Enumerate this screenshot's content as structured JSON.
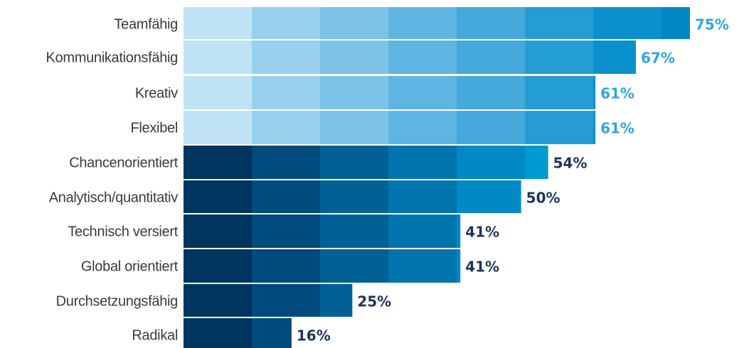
{
  "chart_data": {
    "type": "bar",
    "orientation": "horizontal",
    "title": "",
    "xlabel": "",
    "ylabel": "",
    "xlim": [
      0,
      75
    ],
    "grid": false,
    "categories": [
      "Teamfähig",
      "Kommunikationsfähig",
      "Kreativ",
      "Flexibel",
      "Chancenorientiert",
      "Analytisch/quantitativ",
      "Technisch versiert",
      "Global orientiert",
      "Durchsetzungsfähig",
      "Radikal"
    ],
    "values": [
      75,
      67,
      61,
      61,
      54,
      50,
      41,
      41,
      25,
      16
    ],
    "value_labels": [
      "75%",
      "67%",
      "61%",
      "61%",
      "54%",
      "50%",
      "41%",
      "41%",
      "25%",
      "16%"
    ],
    "value_label_colors": [
      "#2ea6dd",
      "#2ea6dd",
      "#2ea6dd",
      "#2ea6dd",
      "#1d3557",
      "#1d3557",
      "#1d3557",
      "#1d3557",
      "#1d3557",
      "#1d3557"
    ],
    "band_colors_light": [
      "#bfe2f5",
      "#99d0ee",
      "#7dc3e8",
      "#5fb5e1",
      "#45a9db",
      "#259cd4",
      "#0a90cc",
      "#0087c4"
    ],
    "band_colors_dark": [
      "#003560",
      "#004b7d",
      "#006196",
      "#0074ad",
      "#0089c5",
      "#009ad2",
      "#00a6db",
      "#00aee0"
    ]
  }
}
